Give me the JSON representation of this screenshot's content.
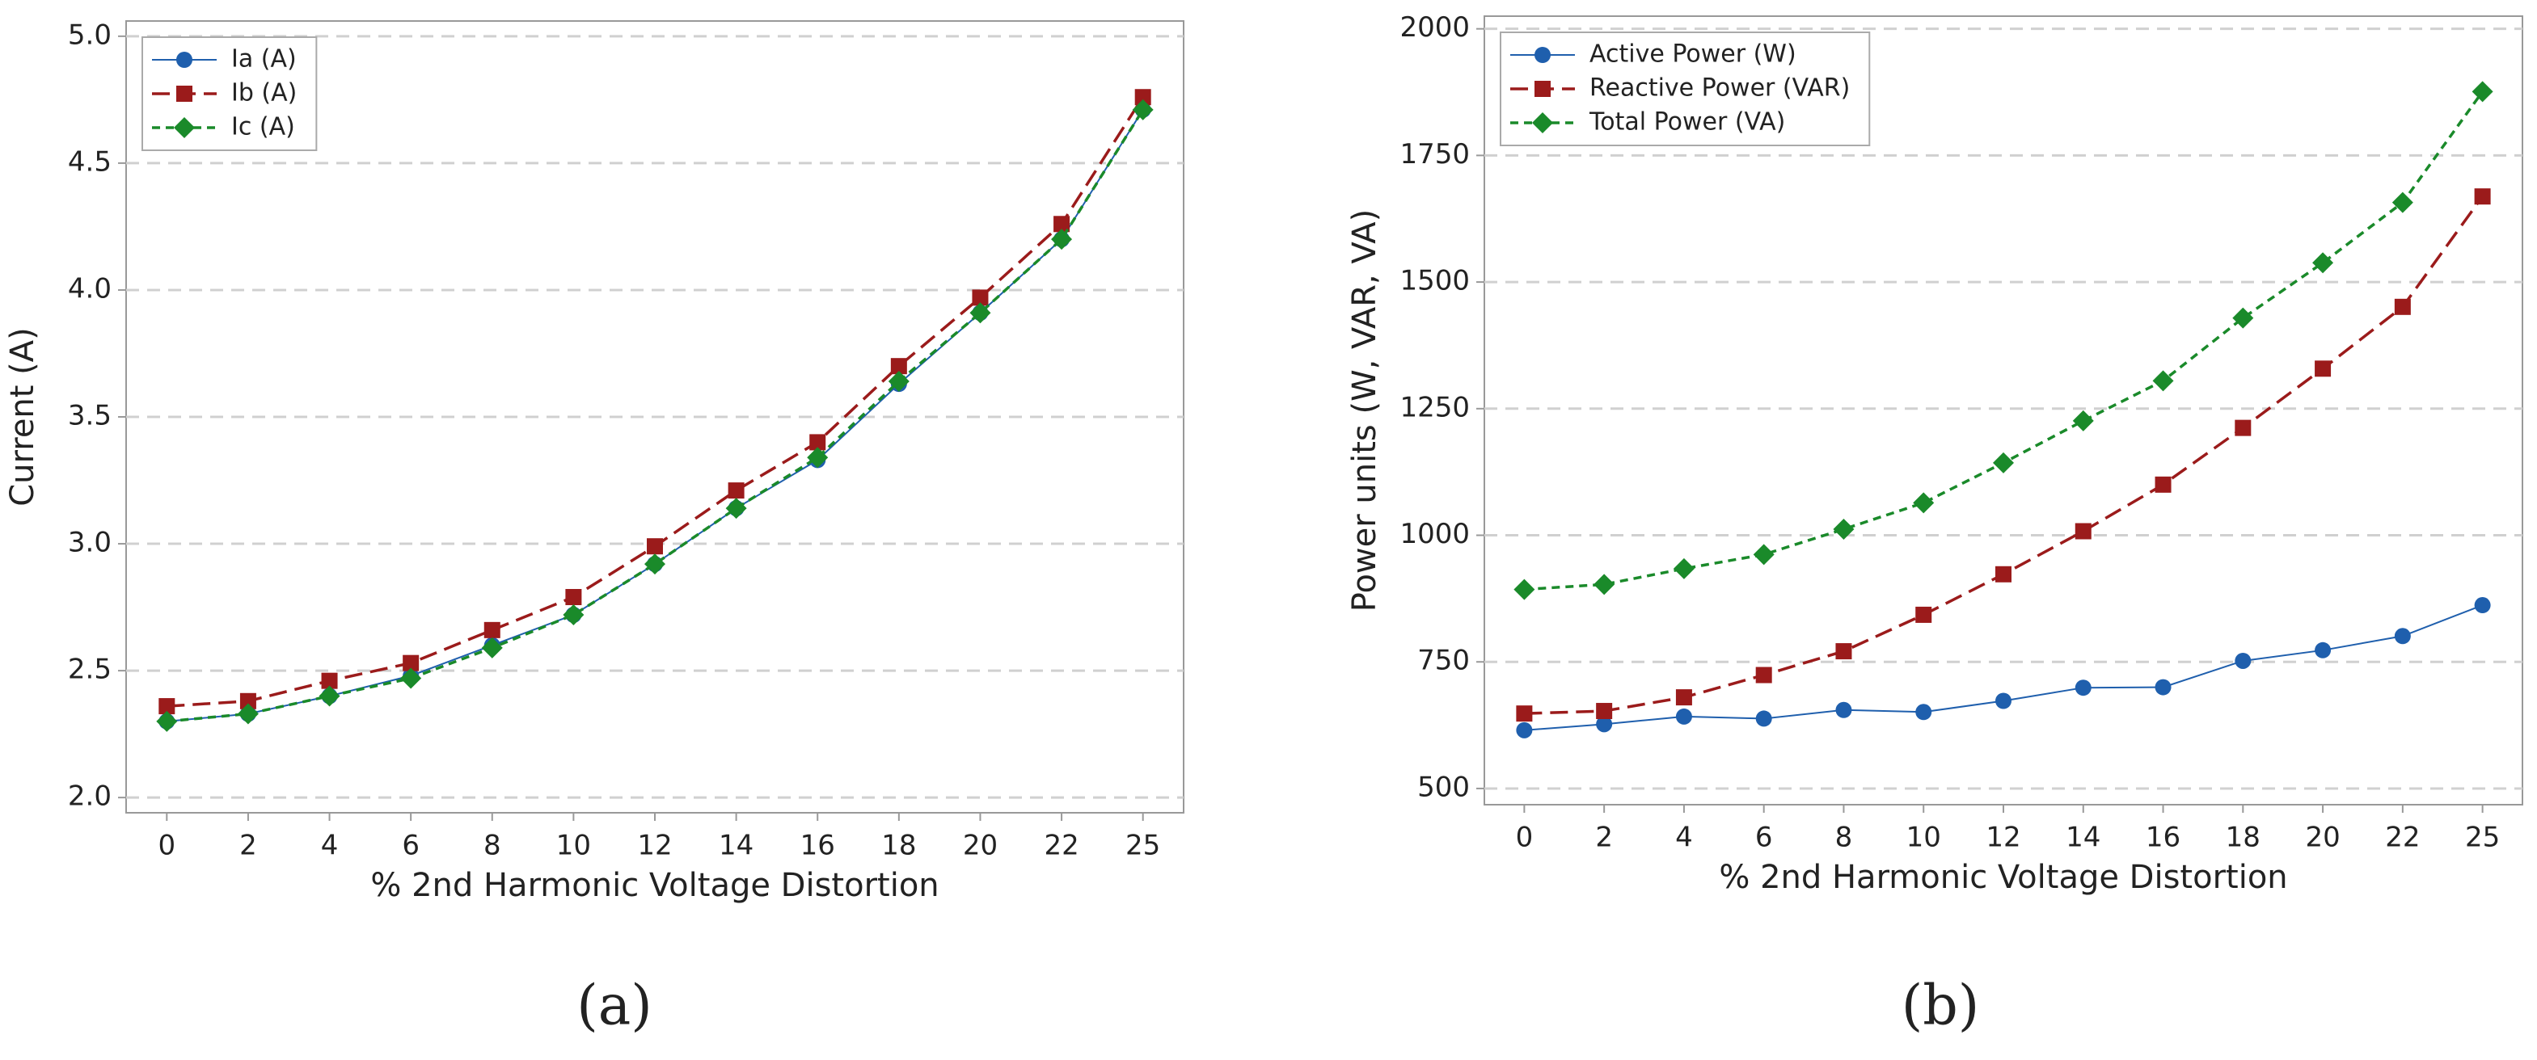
{
  "chart_data": [
    {
      "type": "line",
      "label": "(a)",
      "x_label": "% 2nd Harmonic Voltage Distortion",
      "y_label": "Current (A)",
      "categories": [
        "0",
        "2",
        "4",
        "6",
        "8",
        "10",
        "12",
        "14",
        "16",
        "18",
        "20",
        "22",
        "25"
      ],
      "ylim": [
        1.94,
        5.06
      ],
      "yticks": [
        {
          "value": 2,
          "label": "2.0"
        },
        {
          "value": 2.5,
          "label": "2.5"
        },
        {
          "value": 3,
          "label": "3.0"
        },
        {
          "value": 3.5,
          "label": "3.5"
        },
        {
          "value": 4,
          "label": "4.0"
        },
        {
          "value": 4.5,
          "label": "4.5"
        },
        {
          "value": 5,
          "label": "5.0"
        }
      ],
      "grid": true,
      "legend": "upper left",
      "series": [
        {
          "name": "Ia (A)",
          "color": "#1f5fad",
          "marker": "circle",
          "line_style": "solid",
          "values": [
            2.3,
            2.33,
            2.4,
            2.48,
            2.6,
            2.72,
            2.92,
            3.14,
            3.33,
            3.63,
            3.91,
            4.2,
            4.71
          ]
        },
        {
          "name": "Ib (A)",
          "color": "#9b1b1b",
          "marker": "square",
          "line_style": "long-dash",
          "values": [
            2.36,
            2.38,
            2.46,
            2.53,
            2.66,
            2.79,
            2.99,
            3.21,
            3.4,
            3.7,
            3.97,
            4.26,
            4.76
          ]
        },
        {
          "name": "Ic (A)",
          "color": "#1a8a2a",
          "marker": "diamond",
          "line_style": "short-dash",
          "values": [
            2.3,
            2.33,
            2.4,
            2.47,
            2.59,
            2.72,
            2.92,
            3.14,
            3.34,
            3.64,
            3.91,
            4.2,
            4.71
          ]
        }
      ]
    },
    {
      "type": "line",
      "label": "(b)",
      "x_label": "% 2nd Harmonic Voltage Distortion",
      "y_label": "Power units (W, VAR, VA)",
      "categories": [
        "0",
        "2",
        "4",
        "6",
        "8",
        "10",
        "12",
        "14",
        "16",
        "18",
        "20",
        "22",
        "25"
      ],
      "ylim": [
        468,
        2025
      ],
      "yticks": [
        500,
        750,
        1000,
        1250,
        1500,
        1750,
        2000
      ],
      "grid": true,
      "legend": "upper left",
      "series": [
        {
          "name": "Active Power (W)",
          "color": "#1f5fad",
          "marker": "circle",
          "line_style": "solid",
          "values": [
            615,
            627,
            642,
            638,
            655,
            651,
            673,
            699,
            700,
            752,
            773,
            801,
            862
          ]
        },
        {
          "name": "Reactive Power (VAR)",
          "color": "#9b1b1b",
          "marker": "square",
          "line_style": "long-dash",
          "values": [
            648,
            653,
            680,
            724,
            771,
            843,
            923,
            1008,
            1100,
            1212,
            1329,
            1451,
            1669
          ]
        },
        {
          "name": "Total Power (VA)",
          "color": "#1a8a2a",
          "marker": "diamond",
          "line_style": "short-dash",
          "values": [
            893,
            903,
            934,
            962,
            1012,
            1064,
            1143,
            1226,
            1305,
            1429,
            1538,
            1657,
            1876
          ]
        }
      ]
    }
  ]
}
